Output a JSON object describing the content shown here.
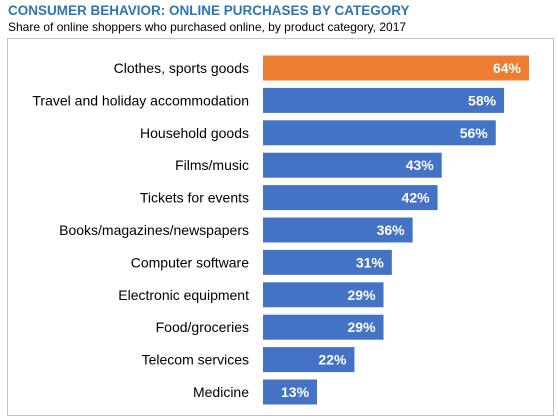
{
  "title": "CONSUMER BEHAVIOR: ONLINE PURCHASES BY CATEGORY",
  "subtitle": "Share of online shoppers who purchased online, by product category, 2017",
  "colors": {
    "bar": "#4472c4",
    "highlight": "#ed7d31",
    "title": "#2e75b6",
    "label_text": "#ffffff"
  },
  "chart_data": {
    "type": "bar",
    "orientation": "horizontal",
    "categories": [
      "Clothes, sports goods",
      "Travel and holiday accommodation",
      "Household goods",
      "Films/music",
      "Tickets for events",
      "Books/magazines/newspapers",
      "Computer software",
      "Electronic equipment",
      "Food/groceries",
      "Telecom services",
      "Medicine"
    ],
    "values": [
      64,
      58,
      56,
      43,
      42,
      36,
      31,
      29,
      29,
      22,
      13
    ],
    "data_labels": [
      "64%",
      "58%",
      "56%",
      "43%",
      "42%",
      "36%",
      "31%",
      "29%",
      "29%",
      "22%",
      "13%"
    ],
    "highlight_index": 0,
    "xlim": [
      0,
      64
    ],
    "grid": false,
    "legend": "none",
    "unit": "%"
  }
}
